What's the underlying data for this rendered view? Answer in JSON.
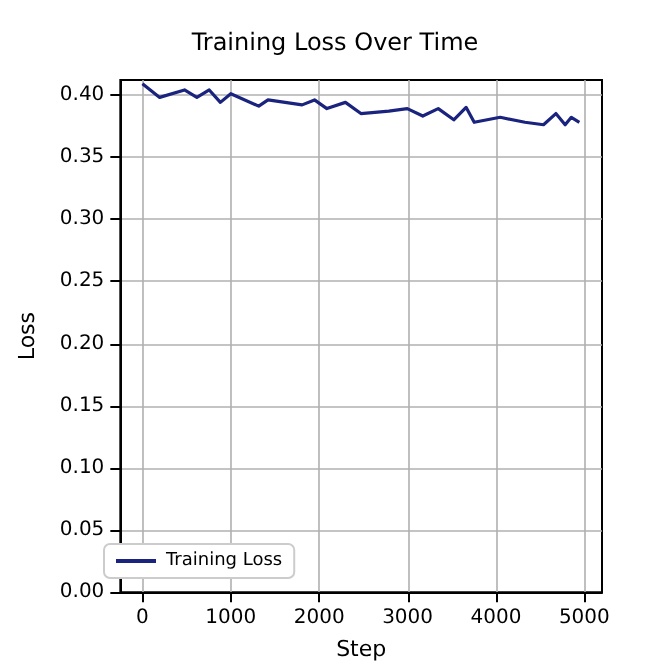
{
  "chart_data": {
    "type": "line",
    "title": "Training Loss Over Time",
    "xlabel": "Step",
    "ylabel": "Loss",
    "x": [
      0,
      195,
      476,
      616,
      756,
      882,
      1000,
      1316,
      1421,
      1807,
      1947,
      2087,
      2297,
      2472,
      2787,
      2997,
      3172,
      3347,
      3523,
      3662,
      3754,
      4048,
      4328,
      4538,
      4678,
      4783,
      4853,
      4944
    ],
    "series": [
      {
        "name": "Training Loss",
        "color": "#1a237e",
        "values": [
          0.409,
          0.398,
          0.404,
          0.398,
          0.404,
          0.394,
          0.401,
          0.391,
          0.396,
          0.392,
          0.396,
          0.389,
          0.394,
          0.385,
          0.387,
          0.389,
          0.383,
          0.389,
          0.38,
          0.39,
          0.378,
          0.382,
          0.378,
          0.376,
          0.385,
          0.376,
          0.382,
          0.378
        ]
      }
    ],
    "xlim": [
      -250,
      5200
    ],
    "xticks": [
      0,
      1000,
      2000,
      3000,
      4000,
      5000
    ],
    "ylim": [
      0,
      0.412
    ],
    "yticks": [
      {
        "value": 0,
        "label": "0.00"
      },
      0.05,
      {
        "value": 0.1,
        "label": "0.10"
      },
      0.15,
      {
        "value": 0.2,
        "label": "0.20"
      },
      0.25,
      {
        "value": 0.3,
        "label": "0.30"
      },
      0.35,
      {
        "value": 0.4,
        "label": "0.40"
      }
    ],
    "grid": true,
    "legend": "bottom left",
    "marker": "none",
    "line_style": "solid"
  }
}
